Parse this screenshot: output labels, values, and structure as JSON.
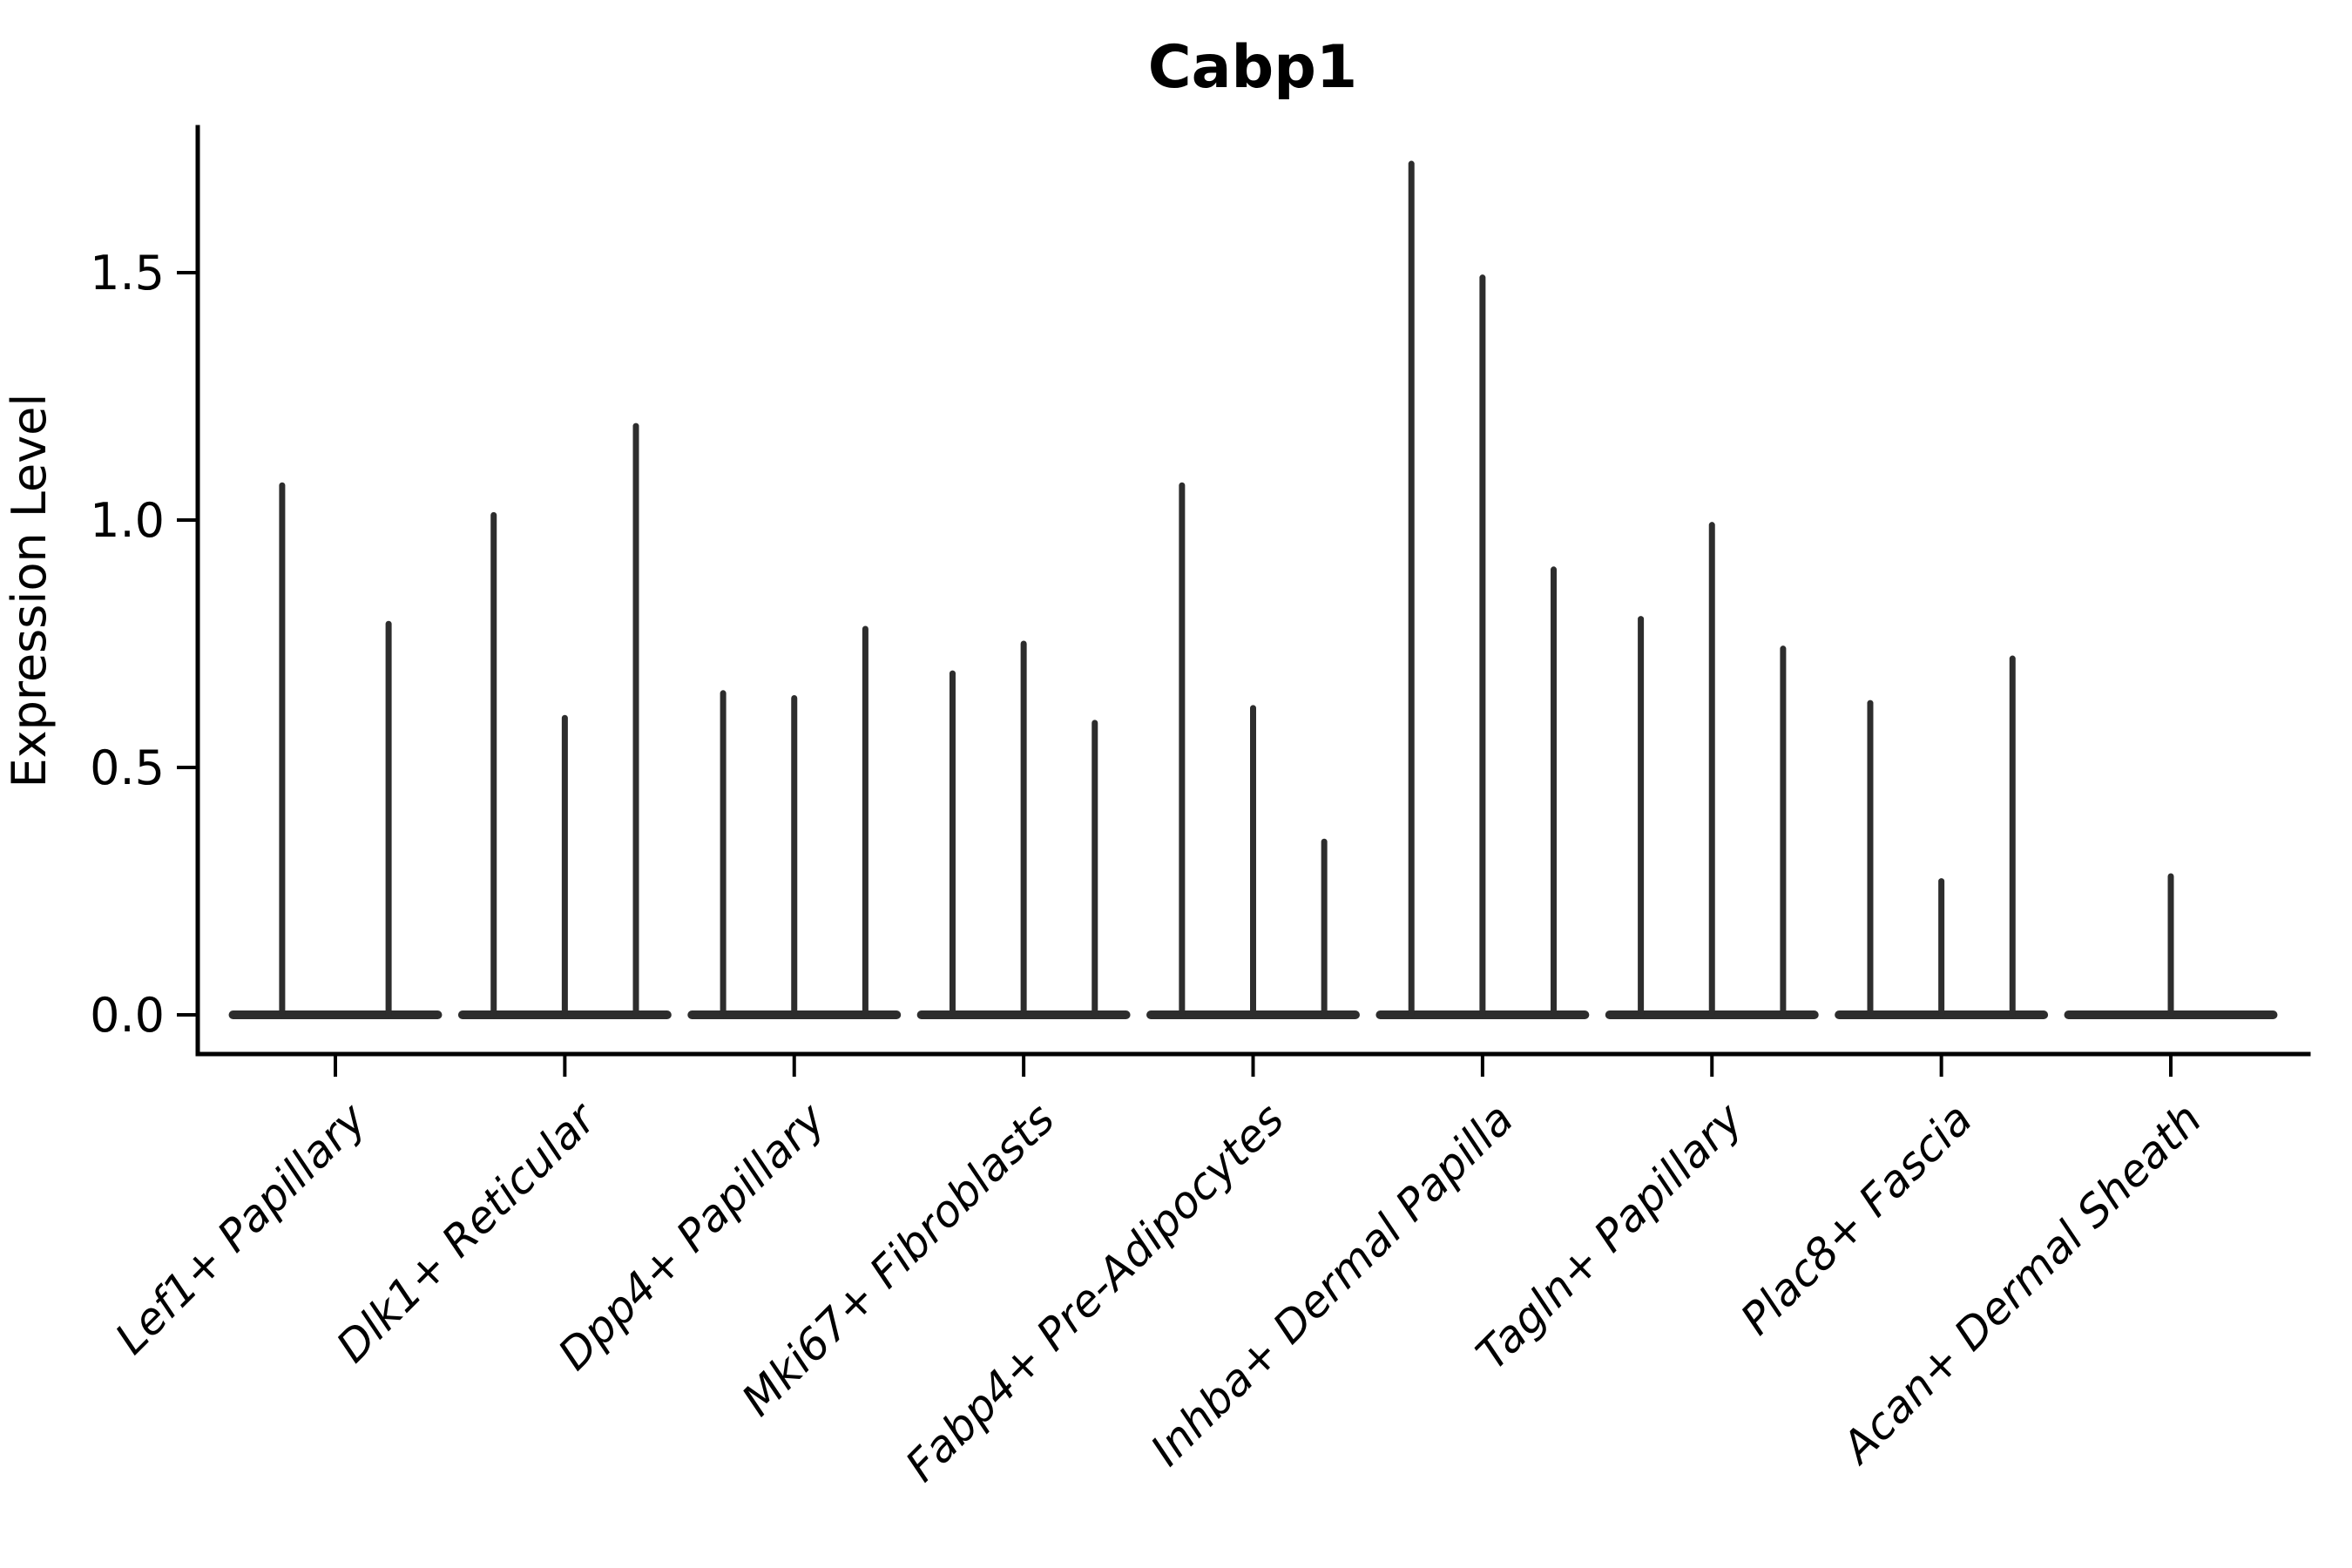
{
  "chart_data": {
    "type": "violin",
    "title": "Cabp1",
    "ylabel": "Expression Level",
    "xlabel": "",
    "ylim": [
      0,
      1.79
    ],
    "yticks": [
      0,
      0.5,
      1.0,
      1.5
    ],
    "ytick_labels": [
      "0.0",
      "0.5",
      "1.0",
      "1.5"
    ],
    "grid": false,
    "legend": "none",
    "colors": {
      "violin": "#2d2d2d",
      "axis": "#000000",
      "background": "#ffffff"
    },
    "categories": [
      {
        "label": "Lef1+ Papillary",
        "violins": [
          {
            "offset": -0.232,
            "max": 1.07
          },
          {
            "offset": 0.232,
            "max": 0.79
          }
        ]
      },
      {
        "label": "Dlk1+ Reticular",
        "violins": [
          {
            "offset": -0.31,
            "max": 1.01
          },
          {
            "offset": 0,
            "max": 0.6
          },
          {
            "offset": 0.31,
            "max": 1.19
          }
        ]
      },
      {
        "label": "Dpp4+ Papillary",
        "violins": [
          {
            "offset": -0.31,
            "max": 0.65
          },
          {
            "offset": 0,
            "max": 0.64
          },
          {
            "offset": 0.31,
            "max": 0.78
          }
        ]
      },
      {
        "label": "Mki67+ Fibroblasts",
        "violins": [
          {
            "offset": -0.31,
            "max": 0.69
          },
          {
            "offset": 0,
            "max": 0.75
          },
          {
            "offset": 0.31,
            "max": 0.59
          }
        ]
      },
      {
        "label": "Fabp4+ Pre-Adipocytes",
        "violins": [
          {
            "offset": -0.31,
            "max": 1.07
          },
          {
            "offset": 0,
            "max": 0.62
          },
          {
            "offset": 0.31,
            "max": 0.35
          }
        ]
      },
      {
        "label": "Inhba+ Dermal Papilla",
        "violins": [
          {
            "offset": -0.31,
            "max": 1.72
          },
          {
            "offset": 0,
            "max": 1.49
          },
          {
            "offset": 0.31,
            "max": 0.9
          }
        ]
      },
      {
        "label": "Tagln+ Papillary",
        "violins": [
          {
            "offset": -0.31,
            "max": 0.8
          },
          {
            "offset": 0,
            "max": 0.99
          },
          {
            "offset": 0.31,
            "max": 0.74
          }
        ]
      },
      {
        "label": "Plac8+ Fascia",
        "violins": [
          {
            "offset": -0.31,
            "max": 0.63
          },
          {
            "offset": 0,
            "max": 0.27
          },
          {
            "offset": 0.31,
            "max": 0.72
          }
        ]
      },
      {
        "label": "Acan+ Dermal Sheath",
        "violins": [
          {
            "offset": 0,
            "max": 0.28
          }
        ]
      }
    ],
    "base_halfwidth": 0.465,
    "layout_hints": {
      "x_labels_rotation_deg": 45,
      "x_labels_italic": true,
      "title_bold": true,
      "violin_style": "zero-inflated: wide flat base at 0 with thin spike to max"
    }
  }
}
